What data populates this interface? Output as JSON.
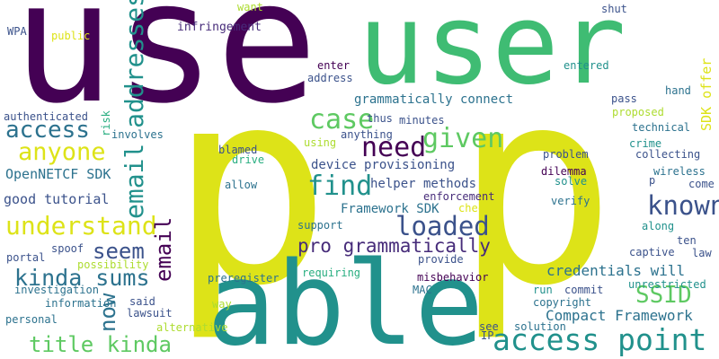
{
  "palette": {
    "dark_purple": "#440154",
    "indigo": "#472c7a",
    "blue": "#3b528b",
    "steel": "#2c728e",
    "teal": "#21918c",
    "green": "#28ae80",
    "mint": "#3fbc73",
    "lime": "#5ec962",
    "yellow_green": "#addc30",
    "yellow": "#dde318"
  },
  "words": [
    {
      "text": "use",
      "color": "#440154"
    },
    {
      "text": "p",
      "color": "#dde318"
    },
    {
      "text": "p",
      "color": "#dde318"
    },
    {
      "text": "user",
      "color": "#3fbc73"
    },
    {
      "text": "able",
      "color": "#21918c"
    },
    {
      "text": "access point",
      "color": "#21918c"
    },
    {
      "text": "email addresses",
      "color": "#21918c"
    },
    {
      "text": "understand",
      "color": "#dde318"
    },
    {
      "text": "given",
      "color": "#5ec962"
    },
    {
      "text": "known",
      "color": "#3b528b"
    },
    {
      "text": "find",
      "color": "#21918c"
    },
    {
      "text": "loaded",
      "color": "#3b528b"
    },
    {
      "text": "anyone",
      "color": "#dde318"
    },
    {
      "text": "need",
      "color": "#440154"
    },
    {
      "text": "case",
      "color": "#5ec962"
    },
    {
      "text": "access",
      "color": "#2c728e"
    },
    {
      "text": "seem",
      "color": "#3b528b"
    },
    {
      "text": "email",
      "color": "#440154"
    },
    {
      "text": "kinda sums",
      "color": "#2c728e"
    },
    {
      "text": "title kinda",
      "color": "#5ec962"
    },
    {
      "text": "SSID",
      "color": "#5ec962"
    },
    {
      "text": "now",
      "color": "#2c728e"
    },
    {
      "text": "pro grammatically",
      "color": "#472c7a"
    },
    {
      "text": "credentials will",
      "color": "#2c728e"
    },
    {
      "text": "Compact Framework",
      "color": "#2c728e"
    },
    {
      "text": "grammatically connect",
      "color": "#2c728e"
    },
    {
      "text": "device provisioning",
      "color": "#3b528b"
    },
    {
      "text": "helper methods",
      "color": "#3b528b"
    },
    {
      "text": "Framework SDK",
      "color": "#2c728e"
    },
    {
      "text": "OpenNETCF SDK",
      "color": "#2c728e"
    },
    {
      "text": "good tutorial",
      "color": "#3b528b"
    },
    {
      "text": "SDK offer",
      "color": "#dde318"
    },
    {
      "text": "enforcement",
      "color": "#472c7a"
    },
    {
      "text": "authenticated",
      "color": "#3b528b"
    },
    {
      "text": "infringement",
      "color": "#472c7a"
    },
    {
      "text": "want",
      "color": "#addc30"
    },
    {
      "text": "shut",
      "color": "#3b528b"
    },
    {
      "text": "WPA",
      "color": "#3b528b"
    },
    {
      "text": "public",
      "color": "#dde318"
    },
    {
      "text": "enter",
      "color": "#440154"
    },
    {
      "text": "address",
      "color": "#3b528b"
    },
    {
      "text": "entered",
      "color": "#21918c"
    },
    {
      "text": "pass",
      "color": "#3b528b"
    },
    {
      "text": "hand",
      "color": "#2c728e"
    },
    {
      "text": "proposed",
      "color": "#addc30"
    },
    {
      "text": "technical",
      "color": "#2c728e"
    },
    {
      "text": "crime",
      "color": "#21918c"
    },
    {
      "text": "collecting",
      "color": "#3b528b"
    },
    {
      "text": "wireless",
      "color": "#2c728e"
    },
    {
      "text": "come",
      "color": "#3b528b"
    },
    {
      "text": "p",
      "color": "#3b528b"
    },
    {
      "text": "thus",
      "color": "#3b528b"
    },
    {
      "text": "minutes",
      "color": "#3b528b"
    },
    {
      "text": "anything",
      "color": "#3b528b"
    },
    {
      "text": "risk",
      "color": "#28ae80"
    },
    {
      "text": "involves",
      "color": "#2c728e"
    },
    {
      "text": "blamed",
      "color": "#3b528b"
    },
    {
      "text": "drive",
      "color": "#28ae80"
    },
    {
      "text": "using",
      "color": "#addc30"
    },
    {
      "text": "problem",
      "color": "#3b528b"
    },
    {
      "text": "dilemma",
      "color": "#440154"
    },
    {
      "text": "solve",
      "color": "#21918c"
    },
    {
      "text": "verify",
      "color": "#2c728e"
    },
    {
      "text": "allow",
      "color": "#2c728e"
    },
    {
      "text": "check",
      "color": "#dde318"
    },
    {
      "text": "support",
      "color": "#2c728e"
    },
    {
      "text": "spoof",
      "color": "#3b528b"
    },
    {
      "text": "portal",
      "color": "#3b528b"
    },
    {
      "text": "possibility",
      "color": "#addc30"
    },
    {
      "text": "provide",
      "color": "#3b528b"
    },
    {
      "text": "misbehavior",
      "color": "#440154"
    },
    {
      "text": "along",
      "color": "#21918c"
    },
    {
      "text": "ten",
      "color": "#3b528b"
    },
    {
      "text": "captive",
      "color": "#3b528b"
    },
    {
      "text": "law",
      "color": "#3b528b"
    },
    {
      "text": "investigation",
      "color": "#2c728e"
    },
    {
      "text": "preregister",
      "color": "#2c728e"
    },
    {
      "text": "requiring",
      "color": "#28ae80"
    },
    {
      "text": "unrestricted",
      "color": "#21918c"
    },
    {
      "text": "information",
      "color": "#2c728e"
    },
    {
      "text": "said",
      "color": "#3b528b"
    },
    {
      "text": "MAC",
      "color": "#2c728e"
    },
    {
      "text": "run",
      "color": "#21918c"
    },
    {
      "text": "commit",
      "color": "#3b528b"
    },
    {
      "text": "copyright",
      "color": "#2c728e"
    },
    {
      "text": "lawsuit",
      "color": "#3b528b"
    },
    {
      "text": "way",
      "color": "#addc30"
    },
    {
      "text": "personal",
      "color": "#2c728e"
    },
    {
      "text": "alternative",
      "color": "#addc30"
    },
    {
      "text": "see",
      "color": "#3b528b"
    },
    {
      "text": "solution",
      "color": "#2c728e"
    },
    {
      "text": "IP",
      "color": "#3b528b"
    }
  ]
}
